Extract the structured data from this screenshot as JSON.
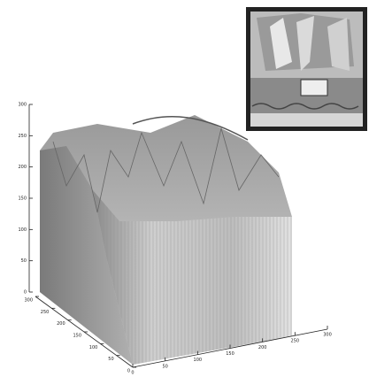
{
  "chart_data": {
    "type": "surface",
    "zlim": [
      0,
      300
    ],
    "zticks": [
      0,
      50,
      100,
      150,
      200,
      250,
      300
    ],
    "xlim": [
      0,
      300
    ],
    "xticks": [
      0,
      50,
      100,
      150,
      200,
      250,
      300
    ],
    "ylim": [
      0,
      300
    ],
    "yticks": [
      0,
      50,
      100,
      150,
      200,
      250,
      300
    ]
  }
}
